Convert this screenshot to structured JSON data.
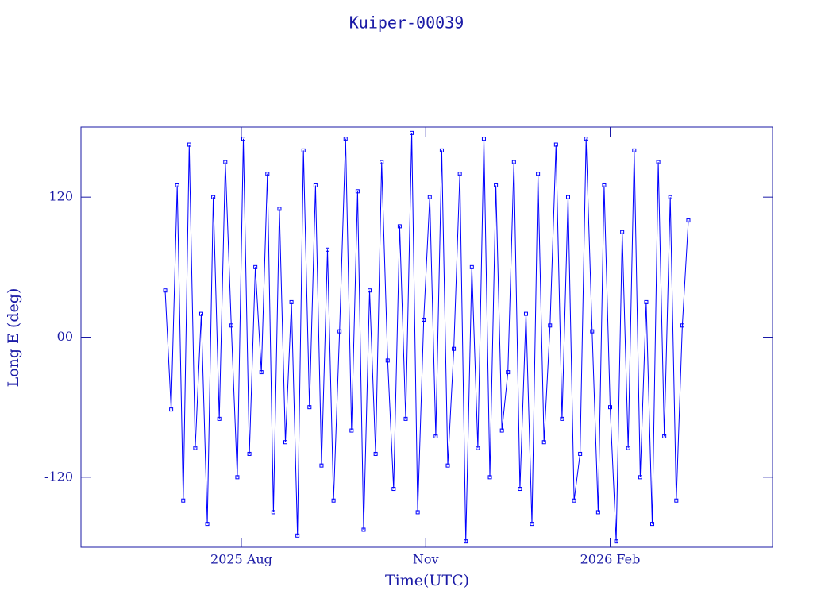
{
  "chart_data": {
    "type": "line",
    "title": "Kuiper-00039",
    "x_label": "Time(UTC)",
    "y_label": "Long E (deg)",
    "xlim": [
      "2025-05-13",
      "2026-04-23"
    ],
    "xticks": [
      {
        "value": "2025-08-01",
        "label": "2025 Aug"
      },
      {
        "value": "2025-11-01",
        "label": "Nov"
      },
      {
        "value": "2026-02-01",
        "label": "2026 Feb"
      }
    ],
    "ylim": [
      -180,
      180
    ],
    "yticks": [
      {
        "value": 120,
        "label": "120"
      },
      {
        "value": 0,
        "label": "00"
      },
      {
        "value": -120,
        "label": "-120"
      }
    ],
    "frame_color": "#1a1aa6",
    "series": [
      {
        "name": "Kuiper-00039",
        "color": "#0000ff",
        "x": [
          "2025-06-24",
          "2025-06-27",
          "2025-06-30",
          "2025-07-03",
          "2025-07-06",
          "2025-07-09",
          "2025-07-12",
          "2025-07-15",
          "2025-07-18",
          "2025-07-21",
          "2025-07-24",
          "2025-07-27",
          "2025-07-30",
          "2025-08-02",
          "2025-08-05",
          "2025-08-08",
          "2025-08-11",
          "2025-08-14",
          "2025-08-17",
          "2025-08-20",
          "2025-08-23",
          "2025-08-26",
          "2025-08-29",
          "2025-09-01",
          "2025-09-04",
          "2025-09-07",
          "2025-09-10",
          "2025-09-13",
          "2025-09-16",
          "2025-09-19",
          "2025-09-22",
          "2025-09-25",
          "2025-09-28",
          "2025-10-01",
          "2025-10-04",
          "2025-10-07",
          "2025-10-10",
          "2025-10-13",
          "2025-10-16",
          "2025-10-19",
          "2025-10-22",
          "2025-10-25",
          "2025-10-28",
          "2025-10-31",
          "2025-11-03",
          "2025-11-06",
          "2025-11-09",
          "2025-11-12",
          "2025-11-15",
          "2025-11-18",
          "2025-11-21",
          "2025-11-24",
          "2025-11-27",
          "2025-11-30",
          "2025-12-03",
          "2025-12-06",
          "2025-12-09",
          "2025-12-12",
          "2025-12-15",
          "2025-12-18",
          "2025-12-21",
          "2025-12-24",
          "2025-12-27",
          "2025-12-30",
          "2026-01-02",
          "2026-01-05",
          "2026-01-08",
          "2026-01-11",
          "2026-01-14",
          "2026-01-17",
          "2026-01-20",
          "2026-01-23",
          "2026-01-26",
          "2026-01-29",
          "2026-02-01",
          "2026-02-04",
          "2026-02-07",
          "2026-02-10",
          "2026-02-13",
          "2026-02-16",
          "2026-02-19",
          "2026-02-22",
          "2026-02-25",
          "2026-02-28",
          "2026-03-03",
          "2026-03-06",
          "2026-03-09",
          "2026-03-12"
        ],
        "values": [
          40,
          -62,
          130,
          -140,
          165,
          -95,
          20,
          -160,
          120,
          -70,
          150,
          10,
          -120,
          170,
          -100,
          60,
          -30,
          140,
          -150,
          110,
          -90,
          30,
          -170,
          160,
          -60,
          130,
          -110,
          75,
          -140,
          5,
          170,
          -80,
          125,
          -165,
          40,
          -100,
          150,
          -20,
          -130,
          95,
          -70,
          175,
          -150,
          15,
          120,
          -85,
          160,
          -110,
          -10,
          140,
          -175,
          60,
          -95,
          170,
          -120,
          130,
          -80,
          -30,
          150,
          -130,
          20,
          -160,
          140,
          -90,
          10,
          165,
          -70,
          120,
          -140,
          -100,
          170,
          5,
          -150,
          130,
          -60,
          -175,
          90,
          -95,
          160,
          -120,
          30,
          -160,
          150,
          -85,
          120,
          -140,
          10,
          100
        ]
      }
    ]
  }
}
